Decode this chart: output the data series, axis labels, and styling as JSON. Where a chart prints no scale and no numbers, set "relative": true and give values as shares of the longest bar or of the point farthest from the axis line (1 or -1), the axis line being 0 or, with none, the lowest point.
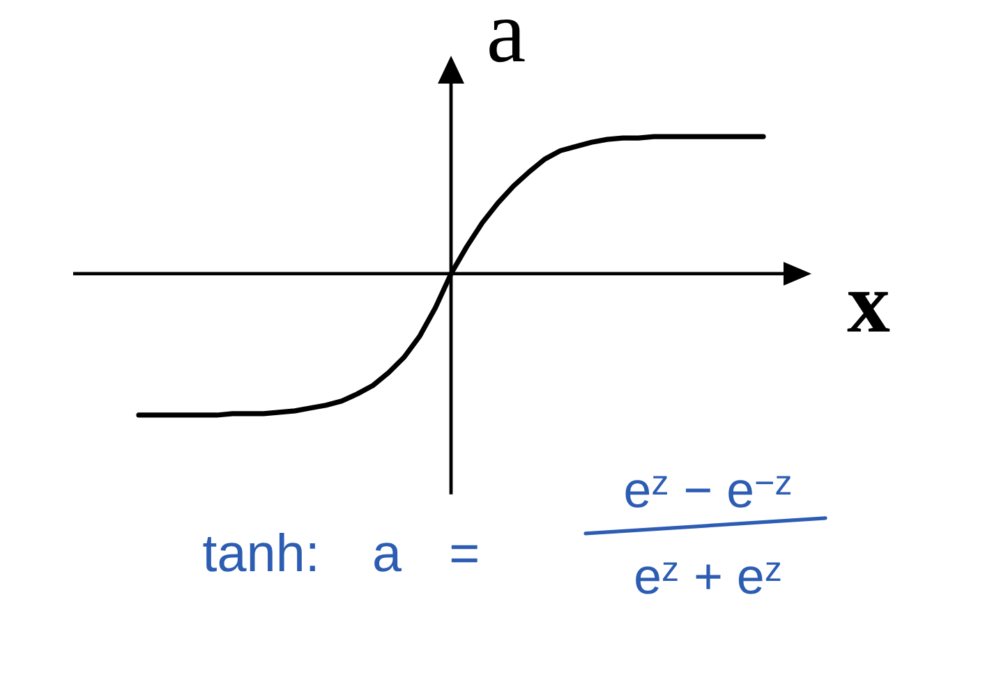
{
  "chart_data": {
    "type": "line",
    "relative": true,
    "color": "#000000",
    "xlabel": "x",
    "ylabel": "a",
    "categories": [
      null,
      null,
      null,
      null,
      null,
      null,
      null,
      null,
      null,
      null,
      null,
      null,
      null,
      null,
      null,
      null,
      null,
      null,
      null,
      null,
      null,
      null,
      null,
      null,
      null,
      null,
      null,
      null,
      null,
      null,
      null,
      null,
      null,
      null,
      null,
      null,
      null,
      null,
      null,
      null,
      null
    ],
    "values": [
      -1.0,
      -1.0,
      -1.0,
      -1.0,
      -1.0,
      -1.0,
      -0.99,
      -0.99,
      -0.99,
      -0.98,
      -0.97,
      -0.95,
      -0.93,
      -0.9,
      -0.85,
      -0.79,
      -0.7,
      -0.59,
      -0.44,
      -0.24,
      0,
      0.19,
      0.36,
      0.5,
      0.62,
      0.72,
      0.81,
      0.87,
      0.9,
      0.93,
      0.95,
      0.96,
      0.96,
      0.97,
      0.97,
      0.97,
      0.97,
      0.97,
      0.97,
      0.97,
      0.97
    ],
    "annotations": [
      "tanh: a =",
      "e$^{z}$ − e$^{−z}$",
      "e$^{z}$ + e$^{z}$"
    ]
  }
}
